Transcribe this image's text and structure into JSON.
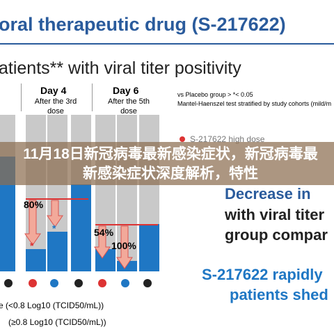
{
  "slide": {
    "title": "oral therapeutic drug (S-217622)",
    "subtitle": "atients** with viral titer positivity",
    "columns": [
      {
        "day": "Day 4",
        "dose": "After the 3rd dose"
      },
      {
        "day": "Day 6",
        "dose": "After the 5th dose"
      }
    ],
    "labels": [
      "80%",
      "54%",
      "100%"
    ],
    "asterisk": "*",
    "legend": [
      "e (<0.8 Log10 (TCID50/mL))",
      "(≥0.8 Log10 (TCID50/mL))"
    ],
    "notes": [
      "vs Placebo group > *< 0.05",
      "Mantel-Haenszel test stratified by study cohorts (mild/m"
    ],
    "series_name": "S-217622 high dose",
    "heading1": [
      "Decrease in",
      "with viral titer",
      "group compar"
    ],
    "heading2": [
      "S-217622 rapidly",
      "patients shed"
    ]
  },
  "banner": "11月18日新冠病毒最新感染症状，新冠病毒最新感染症状深度解析，特性"
}
